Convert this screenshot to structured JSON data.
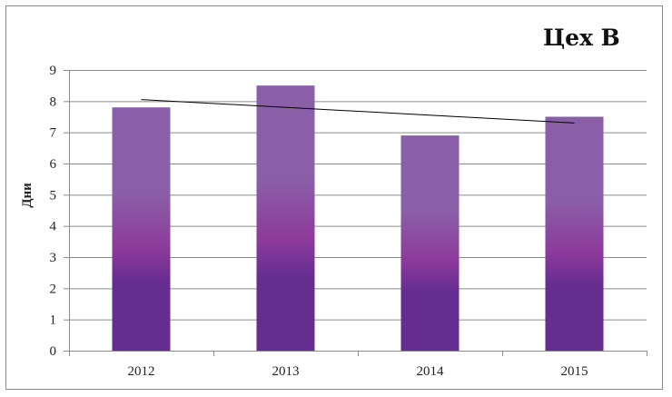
{
  "chart_data": {
    "type": "bar",
    "title": "Цех В",
    "xlabel": "",
    "ylabel": "Дни",
    "categories": [
      "2012",
      "2013",
      "2014",
      "2015"
    ],
    "values": [
      7.8,
      8.5,
      6.9,
      7.5
    ],
    "ylim": [
      0,
      9
    ],
    "yticks": [
      "0",
      "1",
      "2",
      "3",
      "4",
      "5",
      "6",
      "7",
      "8",
      "9"
    ],
    "grid": true,
    "legend": "none",
    "trendline": {
      "type": "linear",
      "start": 8.05,
      "end": 7.3
    },
    "colors": {
      "bar_top": "#8b5fa8",
      "bar_mid": "#8d3a9b",
      "bar_bottom": "#662d91",
      "grid": "#8c8c8c",
      "trendline": "#000000"
    }
  }
}
